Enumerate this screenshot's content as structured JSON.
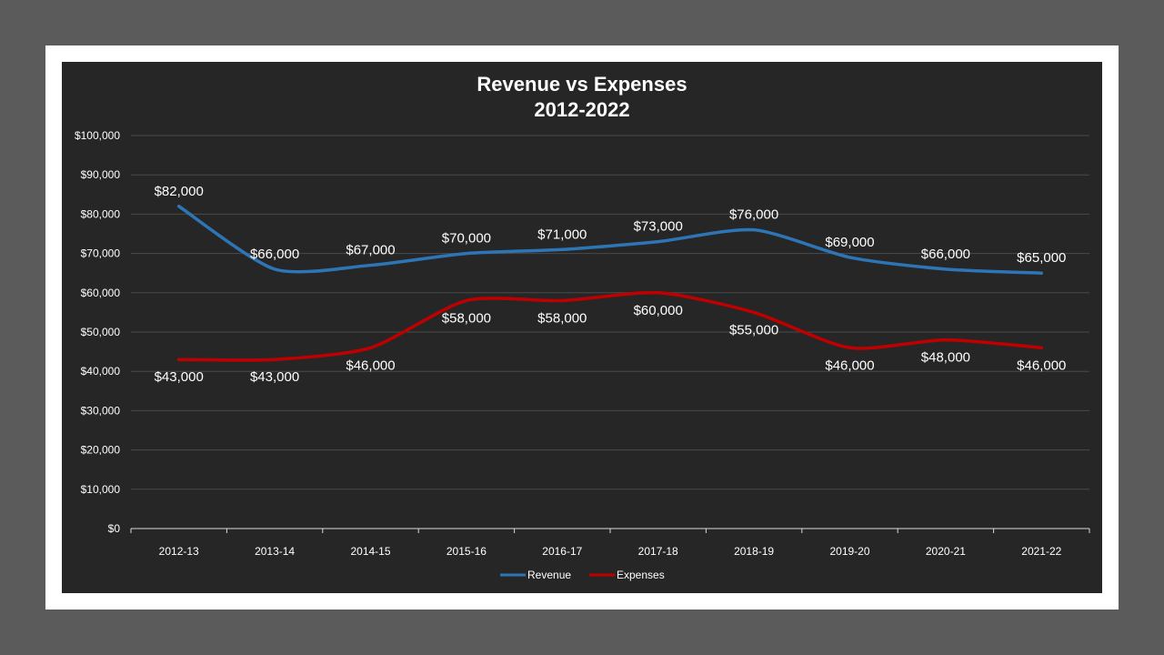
{
  "chart_data": {
    "type": "line",
    "title": [
      "Revenue vs Expenses",
      "2012-2022"
    ],
    "xlabel": "",
    "ylabel": "",
    "categories": [
      "2012-13",
      "2013-14",
      "2014-15",
      "2015-16",
      "2016-17",
      "2017-18",
      "2018-19",
      "2019-20",
      "2020-21",
      "2021-22"
    ],
    "ylim": [
      0,
      100000
    ],
    "yticks": [
      0,
      10000,
      20000,
      30000,
      40000,
      50000,
      60000,
      70000,
      80000,
      90000,
      100000
    ],
    "ytick_labels": [
      "$0",
      "$10,000",
      "$20,000",
      "$30,000",
      "$40,000",
      "$50,000",
      "$60,000",
      "$70,000",
      "$80,000",
      "$90,000",
      "$100,000"
    ],
    "grid": true,
    "legend_position": "bottom",
    "series": [
      {
        "name": "Revenue",
        "color": "#2e75b6",
        "label_position": "above",
        "values": [
          82000,
          66000,
          67000,
          70000,
          71000,
          73000,
          76000,
          69000,
          66000,
          65000
        ],
        "labels": [
          "$82,000",
          "$66,000",
          "$67,000",
          "$70,000",
          "$71,000",
          "$73,000",
          "$76,000",
          "$69,000",
          "$66,000",
          "$65,000"
        ]
      },
      {
        "name": "Expenses",
        "color": "#c00000",
        "label_position": "below",
        "values": [
          43000,
          43000,
          46000,
          58000,
          58000,
          60000,
          55000,
          46000,
          48000,
          46000
        ],
        "labels": [
          "$43,000",
          "$43,000",
          "$46,000",
          "$58,000",
          "$58,000",
          "$60,000",
          "$55,000",
          "$46,000",
          "$48,000",
          "$46,000"
        ]
      }
    ]
  }
}
